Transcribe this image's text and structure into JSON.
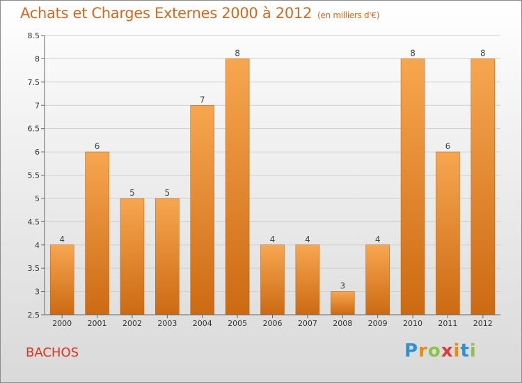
{
  "title": "Achats et Charges Externes 2000 à 2012",
  "unit": "(en milliers d'€)",
  "commune": "BACHOS",
  "logo": {
    "letters": [
      "P",
      "r",
      "o",
      "x",
      "i",
      "t",
      "i"
    ],
    "colors": [
      "#2f8fd8",
      "#f08a00",
      "#8bc34a",
      "#e53935",
      "#f08a00",
      "#2f8fd8",
      "#8bc34a"
    ]
  },
  "chart_data": {
    "type": "bar",
    "categories": [
      "2000",
      "2001",
      "2002",
      "2003",
      "2004",
      "2005",
      "2006",
      "2007",
      "2008",
      "2009",
      "2010",
      "2011",
      "2012"
    ],
    "values": [
      4,
      6,
      5,
      5,
      7,
      8,
      4,
      4,
      3,
      4,
      8,
      6,
      8
    ],
    "ylim": [
      2.5,
      8.5
    ],
    "yticks": [
      "2.5",
      "3",
      "3.5",
      "4",
      "4.5",
      "5",
      "5.5",
      "6",
      "6.5",
      "7",
      "7.5",
      "8",
      "8.5"
    ],
    "grid": true,
    "colors": {
      "bar_light": "#f7a650",
      "bar_dark": "#cc6a12",
      "grid": "#cfcfcf"
    }
  }
}
